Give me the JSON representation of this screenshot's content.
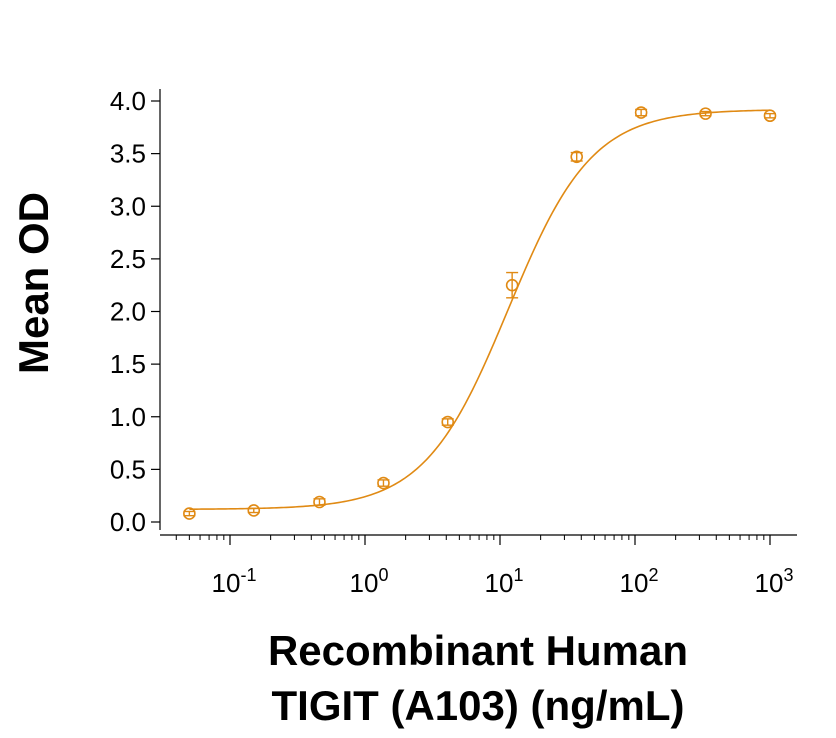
{
  "chart_data": {
    "type": "scatter",
    "xlabel_line1": "Recombinant Human",
    "xlabel_line2": "TIGIT (A103) (ng/mL)",
    "ylabel": "Mean OD",
    "x_scale": "log",
    "xlim": [
      0.04,
      1300
    ],
    "ylim": [
      0,
      4.1
    ],
    "y_ticks": [
      "0.0",
      "0.5",
      "1.0",
      "1.5",
      "2.0",
      "2.5",
      "3.0",
      "3.5",
      "4.0"
    ],
    "x_ticks": [
      {
        "base": "10",
        "exp": "-1",
        "value": 0.1
      },
      {
        "base": "10",
        "exp": "0",
        "value": 1
      },
      {
        "base": "10",
        "exp": "1",
        "value": 10
      },
      {
        "base": "10",
        "exp": "2",
        "value": 100
      },
      {
        "base": "10",
        "exp": "3",
        "value": 1000
      }
    ],
    "series": [
      {
        "color": "#E08A14",
        "points": [
          {
            "x": 0.05,
            "y": 0.08,
            "err": 0.02
          },
          {
            "x": 0.15,
            "y": 0.11,
            "err": 0.02
          },
          {
            "x": 0.46,
            "y": 0.19,
            "err": 0.03
          },
          {
            "x": 1.37,
            "y": 0.37,
            "err": 0.03
          },
          {
            "x": 4.1,
            "y": 0.95,
            "err": 0.03
          },
          {
            "x": 12.3,
            "y": 2.25,
            "err": 0.12
          },
          {
            "x": 37,
            "y": 3.47,
            "err": 0.04
          },
          {
            "x": 111,
            "y": 3.89,
            "err": 0.03
          },
          {
            "x": 333,
            "y": 3.88,
            "err": 0.02
          },
          {
            "x": 1000,
            "y": 3.86,
            "err": 0.02
          }
        ],
        "fit": {
          "model": "4PL",
          "bottom": 0.12,
          "top": 3.92,
          "ec50": 11.5,
          "hill": 1.4
        }
      }
    ]
  }
}
